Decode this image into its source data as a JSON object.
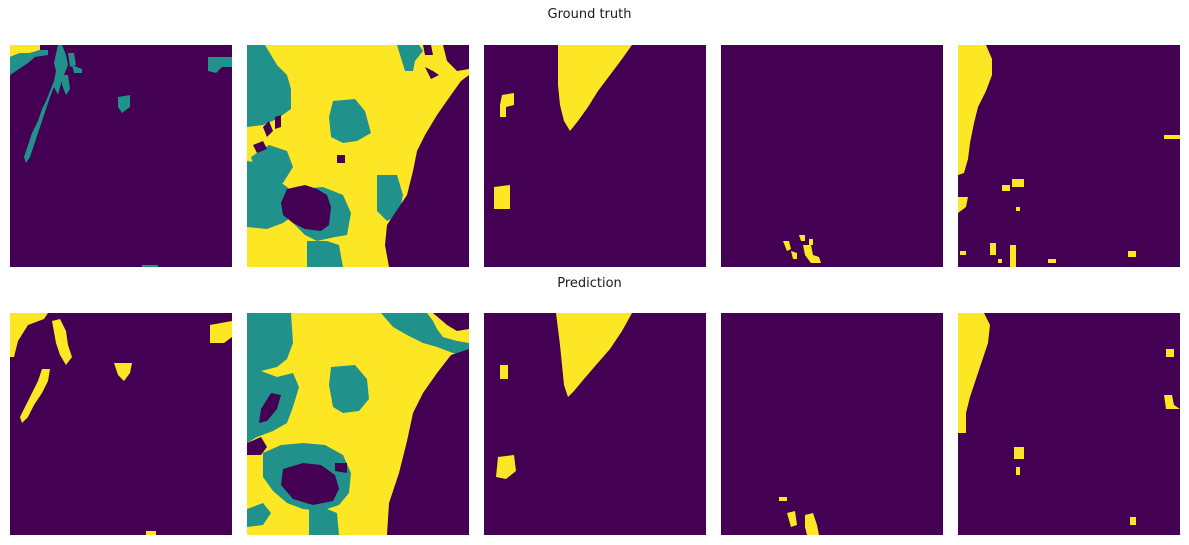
{
  "figure": {
    "rows": [
      {
        "title": "Ground truth",
        "panel_count": 5
      },
      {
        "title": "Prediction",
        "panel_count": 5
      }
    ],
    "colormap": "viridis",
    "colors": {
      "background": "#440154",
      "class_mid": "#21918c",
      "class_high": "#fde725"
    },
    "axes_visible": false
  }
}
